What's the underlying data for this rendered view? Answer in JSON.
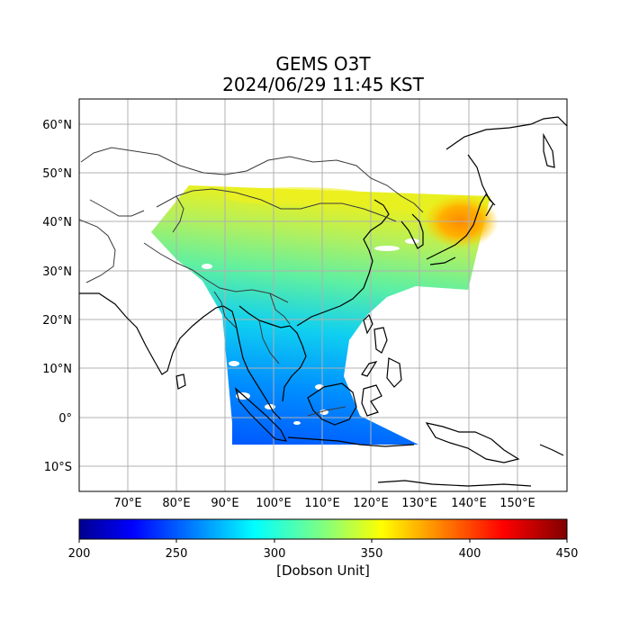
{
  "map": {
    "title_line1": "GEMS O3T",
    "title_line2": "2024/06/29 11:45 KST",
    "lon_ticks": [
      "70°E",
      "80°E",
      "90°E",
      "100°E",
      "110°E",
      "120°E",
      "130°E",
      "140°E",
      "150°E"
    ],
    "lat_ticks": [
      "60°N",
      "50°N",
      "40°N",
      "30°N",
      "20°N",
      "10°N",
      "0°",
      "10°S"
    ],
    "extent": {
      "lon_min": 60,
      "lon_max": 160,
      "lat_min": -15,
      "lat_max": 65
    },
    "gridlines": true,
    "colors": {
      "grid": "#b0b0b0",
      "coast": "#000000",
      "border": "#3a3a3a"
    }
  },
  "colorbar": {
    "label": "[Dobson Unit]",
    "ticks": [
      "200",
      "250",
      "300",
      "350",
      "400",
      "450"
    ],
    "range": [
      200,
      450
    ],
    "colormap": "jet"
  },
  "legend": {
    "colormap_stops": [
      "#000080",
      "#0000ff",
      "#00bfff",
      "#40ffc0",
      "#c0ff40",
      "#ffd000",
      "#ff4000",
      "#800000"
    ]
  }
}
